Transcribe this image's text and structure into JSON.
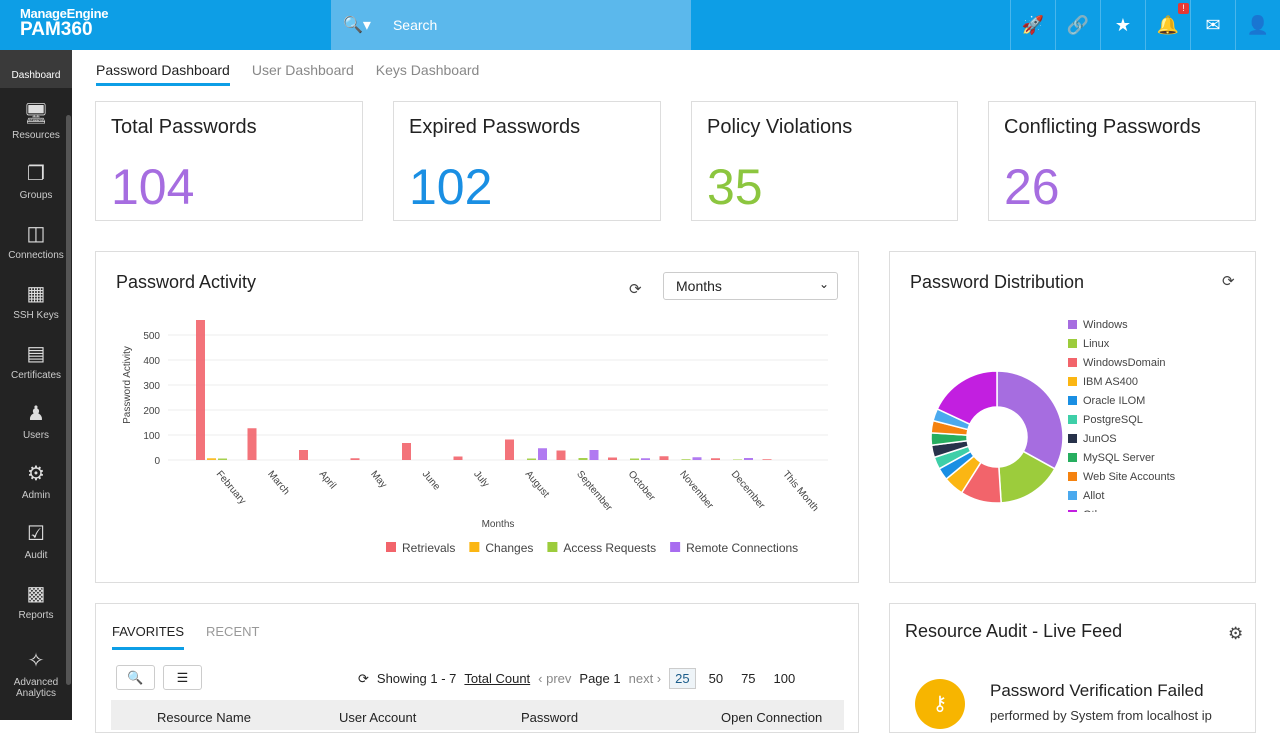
{
  "header": {
    "brand_top": "ManageEngine",
    "brand": "PAM360",
    "search_placeholder": "Search",
    "notification_count": "!"
  },
  "sidebar": {
    "items": [
      {
        "label": "Dashboard",
        "icon": "dashboard-icon"
      },
      {
        "label": "Resources",
        "icon": "monitor-icon"
      },
      {
        "label": "Groups",
        "icon": "groups-icon"
      },
      {
        "label": "Connections",
        "icon": "connections-icon"
      },
      {
        "label": "SSH Keys",
        "icon": "ssh-key-icon"
      },
      {
        "label": "Certificates",
        "icon": "certificate-icon"
      },
      {
        "label": "Users",
        "icon": "user-icon"
      },
      {
        "label": "Admin",
        "icon": "gear-icon"
      },
      {
        "label": "Audit",
        "icon": "clipboard-icon"
      },
      {
        "label": "Reports",
        "icon": "reports-icon"
      },
      {
        "label": "Advanced Analytics",
        "icon": "analytics-icon"
      }
    ]
  },
  "tabs": [
    "Password Dashboard",
    "User Dashboard",
    "Keys Dashboard"
  ],
  "stats": [
    {
      "title": "Total Passwords",
      "value": "104",
      "color": "#a66de0"
    },
    {
      "title": "Expired Passwords",
      "value": "102",
      "color": "#1a8fe3"
    },
    {
      "title": "Policy Violations",
      "value": "35",
      "color": "#8cc63f"
    },
    {
      "title": "Conflicting Passwords",
      "value": "26",
      "color": "#a66de0"
    }
  ],
  "activity": {
    "title": "Password Activity",
    "period": "Months"
  },
  "distribution": {
    "title": "Password Distribution"
  },
  "chart_data": [
    {
      "type": "bar",
      "title": "Password Activity",
      "xlabel": "Months",
      "ylabel": "Password Activity",
      "ylim": [
        0,
        600
      ],
      "yticks": [
        0,
        100,
        200,
        300,
        400,
        500
      ],
      "grid": true,
      "legend": "bottom",
      "categories": [
        "February",
        "March",
        "April",
        "May",
        "June",
        "July",
        "August",
        "September",
        "October",
        "November",
        "December",
        "This Month"
      ],
      "series": [
        {
          "name": "Retrievals",
          "color": "#f2646b",
          "values": [
            560,
            127,
            40,
            7,
            68,
            14,
            82,
            38,
            10,
            15,
            7,
            3
          ]
        },
        {
          "name": "Changes",
          "color": "#fbb613",
          "values": [
            7,
            0,
            0,
            0,
            0,
            0,
            0,
            0,
            0,
            0,
            0,
            0
          ]
        },
        {
          "name": "Access Requests",
          "color": "#9ccc3c",
          "values": [
            6,
            0,
            0,
            0,
            0,
            0,
            6,
            8,
            6,
            3,
            2,
            0
          ]
        },
        {
          "name": "Remote Connections",
          "color": "#a86cf0",
          "values": [
            0,
            0,
            0,
            0,
            0,
            0,
            47,
            40,
            7,
            11,
            8,
            0
          ]
        }
      ]
    },
    {
      "type": "pie",
      "title": "Password Distribution",
      "donut": true,
      "legend": "right",
      "labels": [
        "Windows",
        "Linux",
        "WindowsDomain",
        "IBM AS400",
        "Oracle ILOM",
        "PostgreSQL",
        "JunOS",
        "MySQL Server",
        "Web Site Accounts",
        "Allot",
        "Others"
      ],
      "colors": [
        "#a66de0",
        "#9ccc3c",
        "#f2646b",
        "#fbb613",
        "#1a8fe3",
        "#3ecfa8",
        "#27324a",
        "#27ae60",
        "#f5820f",
        "#4aa9ee",
        "#c21fe0"
      ],
      "values": [
        33,
        16,
        10,
        5,
        3,
        3,
        3,
        3,
        3,
        3,
        18
      ]
    }
  ],
  "favorites": {
    "tabs": [
      "FAVORITES",
      "RECENT"
    ],
    "showing": "Showing 1 - 7",
    "total_count": "Total Count",
    "prev": "‹ prev",
    "page": "Page 1",
    "next": "next ›",
    "sizes": [
      "25",
      "50",
      "75",
      "100"
    ],
    "columns": [
      "Resource Name",
      "User Account",
      "Password",
      "Open Connection"
    ]
  },
  "feed": {
    "title": "Resource Audit - Live Feed",
    "event_title": "Password Verification Failed",
    "event_desc": "performed by System from localhost ip"
  }
}
